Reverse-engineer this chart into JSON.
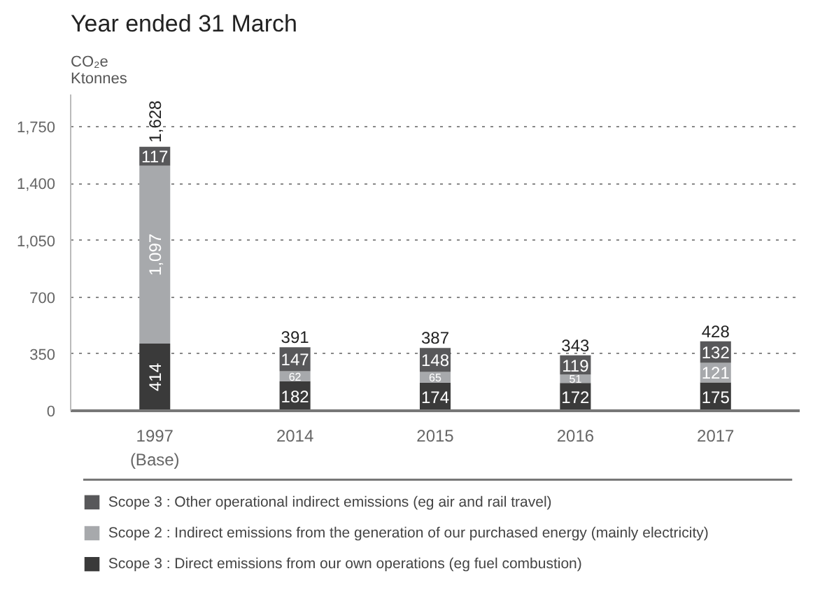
{
  "chart_data": {
    "type": "bar",
    "stacked": true,
    "title": "Year ended 31 March",
    "ylabel": "CO₂e Ktonnes",
    "categories": [
      "1997\n(Base)",
      "2014",
      "2015",
      "2016",
      "2017"
    ],
    "series": [
      {
        "name": "Scope 3 : Direct emissions from our own operations (eg fuel combustion)",
        "color": "#3a3a3a",
        "values": [
          414,
          182,
          174,
          172,
          175
        ],
        "value_labels": [
          "414",
          "182",
          "174",
          "172",
          "175"
        ]
      },
      {
        "name": "Scope 2 : Indirect emissions from the generation of our purchased energy (mainly electricity)",
        "color": "#a7a9ac",
        "values": [
          1097,
          62,
          65,
          51,
          121
        ],
        "value_labels": [
          "1,097",
          "62",
          "65",
          "51",
          "121"
        ]
      },
      {
        "name": "Scope 3 : Other operational indirect emissions (eg air and rail travel)",
        "color": "#58585a",
        "values": [
          117,
          147,
          148,
          119,
          132
        ],
        "value_labels": [
          "117",
          "147",
          "148",
          "119",
          "132"
        ]
      }
    ],
    "totals": [
      "1,628",
      "391",
      "387",
      "343",
      "428"
    ],
    "ylim": [
      0,
      1950
    ],
    "yticks": [
      {
        "value": 0,
        "label": "0"
      },
      {
        "value": 350,
        "label": "350"
      },
      {
        "value": 700,
        "label": "700"
      },
      {
        "value": 1050,
        "label": "1,050"
      },
      {
        "value": 1400,
        "label": "1,400"
      },
      {
        "value": 1750,
        "label": "1,750"
      }
    ],
    "grid": "y",
    "legend": "bottom"
  }
}
